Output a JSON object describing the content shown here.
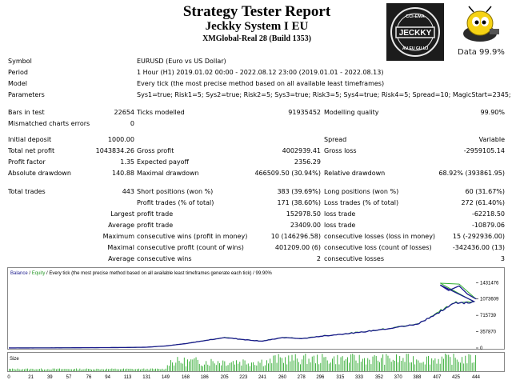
{
  "header": {
    "title": "Strategy Tester Report",
    "subtitle": "Jeckky System I EU",
    "build": "XMGlobal-Real 28 (Build 1353)",
    "logo_text": [
      "CCI-EMA",
      "JECKKY",
      "AU EU GU UJ"
    ],
    "data_quality": "Data 99.9%"
  },
  "params": [
    {
      "label": "Symbol",
      "value": "EURUSD (Euro vs US Dollar)"
    },
    {
      "label": "Period",
      "value": "1 Hour (H1) 2019.01.02 00:00 - 2022.08.12 23:00 (2019.01.01 - 2022.08.13)"
    },
    {
      "label": "Model",
      "value": "Every tick (the most precise method based on all available least timeframes)"
    },
    {
      "label": "Parameters",
      "value": "Sys1=true; Risk1=5; Sys2=true; Risk2=5; Sys3=true; Risk3=5; Sys4=true; Risk4=5; Spread=10; MagicStart=2345;"
    }
  ],
  "stats": {
    "bars_label": "Bars in test",
    "bars": "22654",
    "ticks_label": "Ticks modelled",
    "ticks": "91935452",
    "quality_label": "Modelling quality",
    "quality": "99.90%",
    "mismatch_label": "Mismatched charts errors",
    "mismatch": "0",
    "deposit_label": "Initial deposit",
    "deposit": "1000.00",
    "spread_label": "Spread",
    "spread": "Variable",
    "netprofit_label": "Total net profit",
    "netprofit": "1043834.26",
    "grossprofit_label": "Gross profit",
    "grossprofit": "4002939.41",
    "grossloss_label": "Gross loss",
    "grossloss": "-2959105.14",
    "pf_label": "Profit factor",
    "pf": "1.35",
    "payoff_label": "Expected payoff",
    "payoff": "2356.29",
    "absdd_label": "Absolute drawdown",
    "absdd": "140.88",
    "maxdd_label": "Maximal drawdown",
    "maxdd": "466509.50 (30.94%)",
    "reldd_label": "Relative drawdown",
    "reldd": "68.92% (393861.95)",
    "trades_label": "Total trades",
    "trades": "443",
    "short_label": "Short positions (won %)",
    "short": "383 (39.69%)",
    "long_label": "Long positions (won %)",
    "long": "60 (31.67%)",
    "ptrades_label": "Profit trades (% of total)",
    "ptrades": "171 (38.60%)",
    "ltrades_label": "Loss trades (% of total)",
    "ltrades": "272 (61.40%)",
    "largest": "Largest",
    "largest_p_label": "profit trade",
    "largest_p": "152978.50",
    "largest_l_label": "loss trade",
    "largest_l": "-62218.50",
    "average": "Average",
    "avg_p_label": "profit trade",
    "avg_p": "23409.00",
    "avg_l_label": "loss trade",
    "avg_l": "-10879.06",
    "maximum": "Maximum",
    "maxcw_label": "consecutive wins (profit in money)",
    "maxcw": "10 (146296.58)",
    "maxcl_label": "consecutive losses (loss in money)",
    "maxcl": "15 (-292936.00)",
    "maximal": "Maximal",
    "mxcp_label": "consecutive profit (count of wins)",
    "mxcp": "401209.00 (6)",
    "mxcl2_label": "consecutive loss (count of losses)",
    "mxcl2": "-342436.00 (13)",
    "average2": "Average",
    "avgcw_label": "consecutive wins",
    "avgcw": "2",
    "avgcl_label": "consecutive losses",
    "avgcl": "3"
  },
  "chart_data": {
    "type": "line",
    "legend_balance": "Balance",
    "legend_slash": " / ",
    "legend_equity": "Equity",
    "legend_rest": " / Every tick (the most precise method based on all available least timeframes generate each tick) / 99.90%",
    "series": [
      {
        "name": "Balance",
        "color": "#1a1a8c"
      },
      {
        "name": "Equity",
        "color": "#33b033"
      }
    ],
    "trades": [
      0,
      21,
      39,
      57,
      76,
      94,
      113,
      131,
      149,
      168,
      186,
      205,
      223,
      241,
      260,
      278,
      296,
      315,
      333,
      352,
      370,
      388,
      407,
      425,
      444
    ],
    "balance": [
      1000,
      1800,
      2500,
      4500,
      7000,
      9000,
      12000,
      18000,
      45000,
      95000,
      160000,
      230000,
      185000,
      150000,
      230000,
      205000,
      255000,
      300000,
      340000,
      400000,
      460000,
      520000,
      760000,
      1000000,
      1000000
    ],
    "y_ticks": [
      "1431476",
      "1073609",
      "715739",
      "357870",
      "0"
    ],
    "y_tick_values": [
      1431476,
      1073609,
      715739,
      357870,
      0
    ],
    "ylim": [
      0,
      1560000
    ],
    "x_ticks": [
      "0",
      "21",
      "39",
      "57",
      "76",
      "94",
      "113",
      "131",
      "149",
      "168",
      "186",
      "205",
      "223",
      "241",
      "260",
      "278",
      "296",
      "315",
      "333",
      "352",
      "370",
      "388",
      "407",
      "425",
      "444"
    ],
    "size_label": "Size"
  }
}
